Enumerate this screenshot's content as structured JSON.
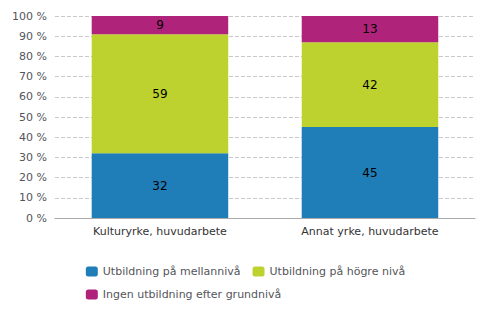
{
  "chart_data": {
    "type": "bar",
    "stacked": true,
    "categories": [
      "Kulturyrke, huvudarbete",
      "Annat yrke, huvudarbete"
    ],
    "series": [
      {
        "name": "Utbildning på mellannivå",
        "color": "#1f7eb8",
        "values": [
          32,
          45
        ]
      },
      {
        "name": "Utbildning på högre nivå",
        "color": "#bdd22e",
        "values": [
          59,
          42
        ]
      },
      {
        "name": "Ingen utbildning efter grundnivå",
        "color": "#b0237a",
        "values": [
          9,
          13
        ]
      }
    ],
    "ylim": [
      0,
      100
    ],
    "yticks": [
      {
        "value": 0,
        "label": "0 %"
      },
      {
        "value": 10,
        "label": "10 %"
      },
      {
        "value": 20,
        "label": "20 %"
      },
      {
        "value": 30,
        "label": "30 %"
      },
      {
        "value": 40,
        "label": "40 %"
      },
      {
        "value": 50,
        "label": "50 %"
      },
      {
        "value": 60,
        "label": "60 %"
      },
      {
        "value": 70,
        "label": "70 %"
      },
      {
        "value": 80,
        "label": "80 %"
      },
      {
        "value": 90,
        "label": "90 %"
      },
      {
        "value": 100,
        "label": "100 %"
      }
    ],
    "grid": true,
    "data_labels": true,
    "legend": "bottom"
  }
}
